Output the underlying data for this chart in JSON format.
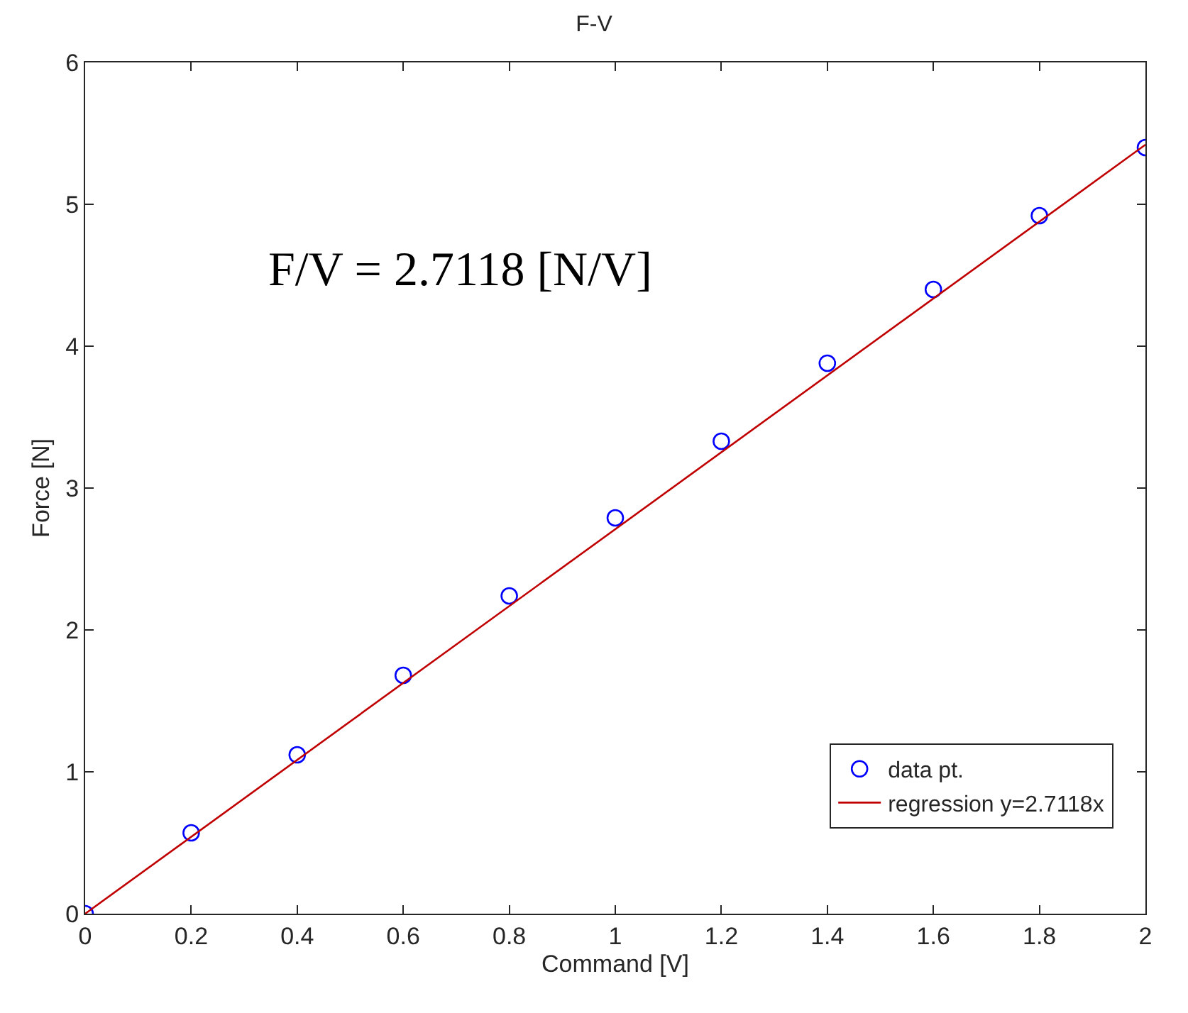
{
  "chart_data": {
    "type": "scatter",
    "title": "F-V",
    "xlabel": "Command [V]",
    "ylabel": "Force [N]",
    "series": [
      {
        "name": "data pt.",
        "marker": "circle",
        "color": "#0000ff",
        "x": [
          0,
          0.2,
          0.4,
          0.6,
          0.8,
          1.0,
          1.2,
          1.4,
          1.6,
          1.8,
          2.0
        ],
        "values": [
          0,
          0.57,
          1.12,
          1.68,
          2.24,
          2.79,
          3.33,
          3.88,
          4.4,
          4.92,
          5.4
        ]
      },
      {
        "name": "regression y=2.7118x",
        "type": "line",
        "marker": "none",
        "line_style": "solid",
        "color": "#c00000",
        "x": [
          0,
          2
        ],
        "values": [
          0,
          5.42
        ]
      }
    ],
    "xlim": [
      0,
      2
    ],
    "xticks": [
      0,
      0.2,
      0.4,
      0.6,
      0.8,
      1,
      1.2,
      1.4,
      1.6,
      1.8,
      2
    ],
    "ylim": [
      0,
      6
    ],
    "yticks": [
      0,
      1,
      2,
      3,
      4,
      5,
      6
    ],
    "legend": "bottom right",
    "annotations": [
      "F/V = 2.7118 [N/V]"
    ]
  }
}
